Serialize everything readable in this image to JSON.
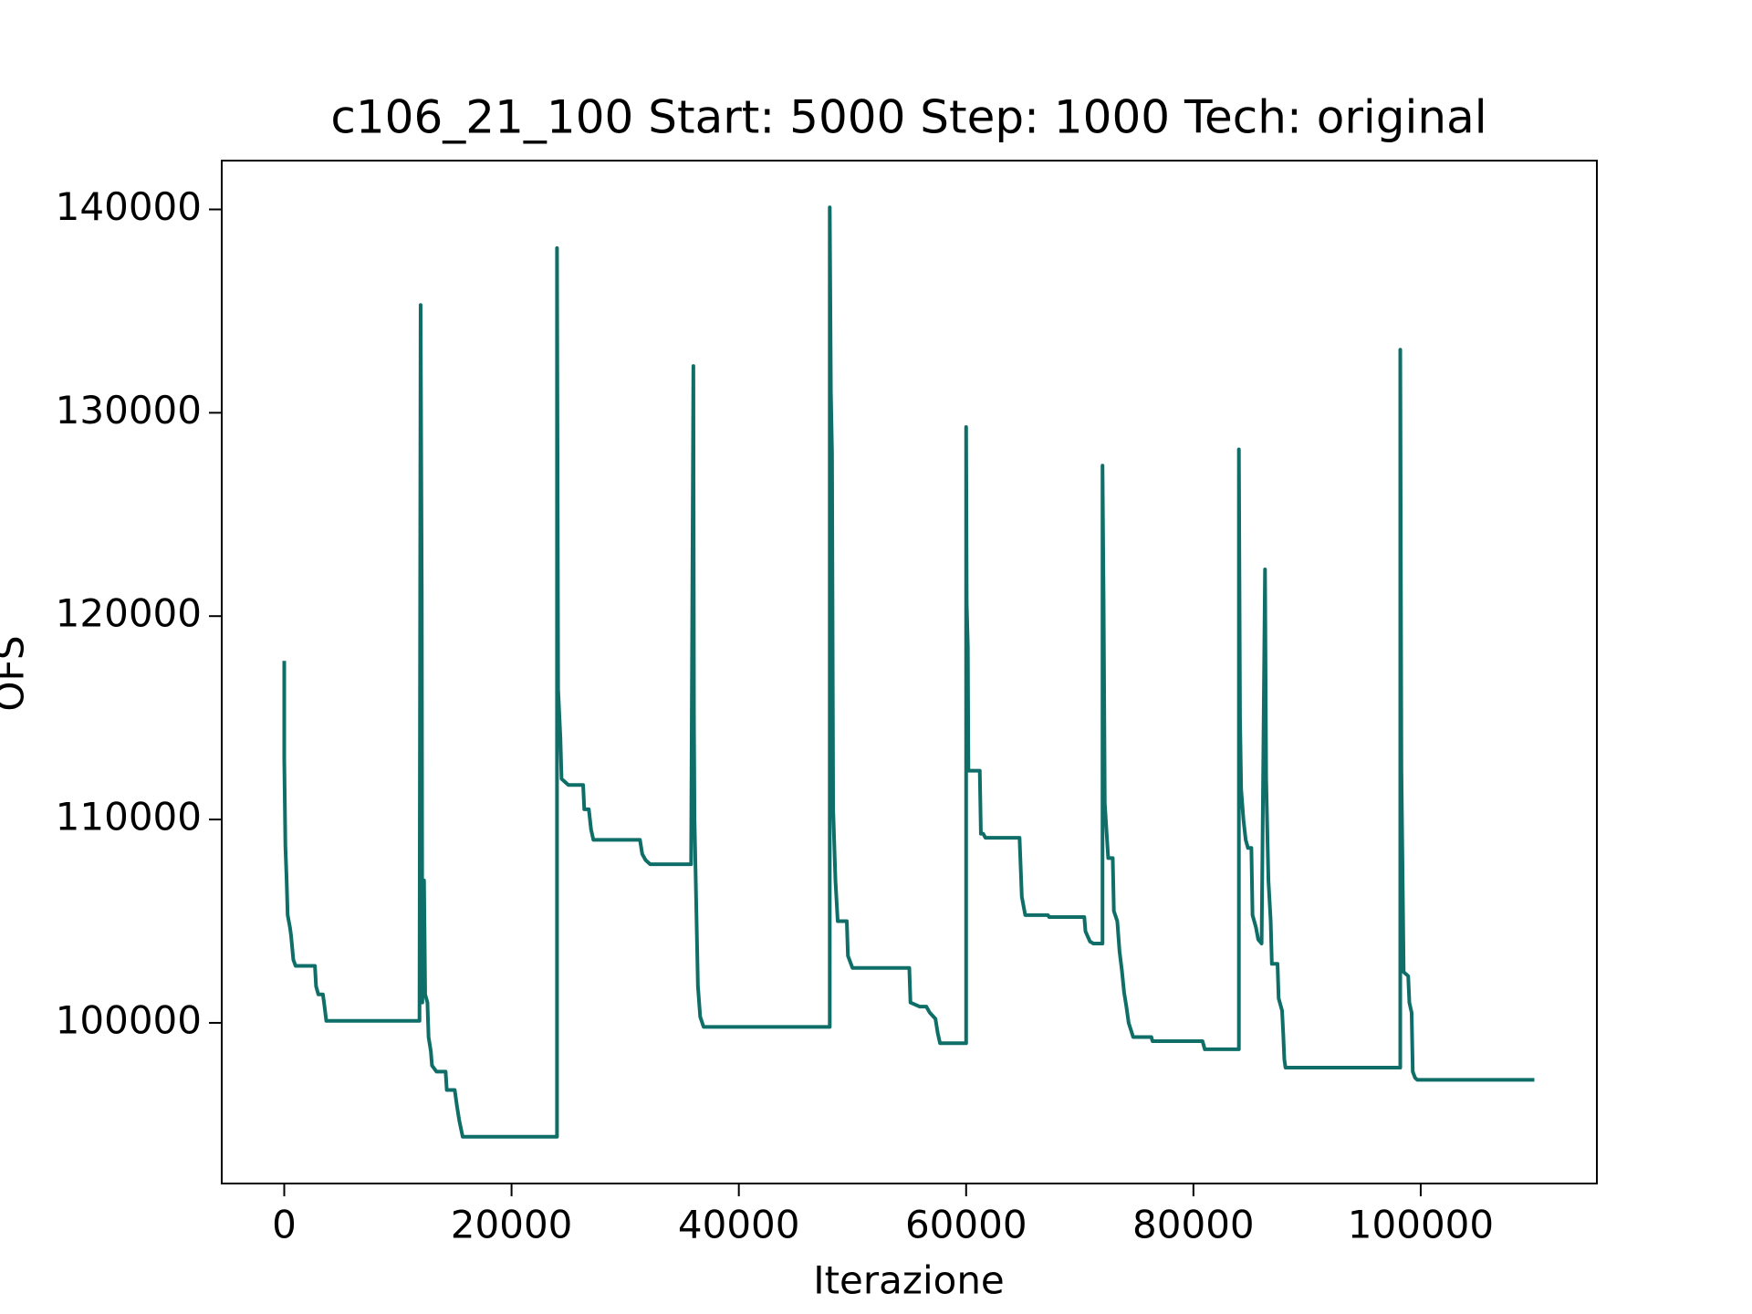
{
  "chart_data": {
    "type": "line",
    "title": "c106_21_100 Start: 5000 Step: 1000 Tech: original",
    "xlabel": "Iterazione",
    "ylabel": "OFS",
    "color": "#0f6e68",
    "xlim": [
      -5500,
      115500
    ],
    "ylim": [
      92100,
      142400
    ],
    "xticks": [
      0,
      20000,
      40000,
      60000,
      80000,
      100000
    ],
    "yticks": [
      100000,
      110000,
      120000,
      130000,
      140000
    ],
    "x": [
      0,
      0,
      100,
      200,
      300,
      500,
      600,
      800,
      1000,
      2700,
      2800,
      3000,
      3400,
      3500,
      3700,
      11900,
      12000,
      12100,
      12150,
      12300,
      12400,
      12600,
      12700,
      12900,
      13000,
      13400,
      14200,
      14300,
      15000,
      15200,
      15400,
      15700,
      24000,
      24000,
      24100,
      24300,
      24400,
      24800,
      25000,
      26300,
      26400,
      26800,
      27000,
      27200,
      31300,
      31500,
      31800,
      32200,
      35800,
      36000,
      36050,
      36100,
      36300,
      36400,
      36600,
      36900,
      48000,
      48000,
      48100,
      48200,
      48300,
      48500,
      48700,
      49500,
      49600,
      50000,
      55000,
      55100,
      55900,
      56500,
      56800,
      57300,
      57500,
      57700,
      60000,
      60000,
      60050,
      60150,
      60200,
      61200,
      61300,
      61500,
      61700,
      64700,
      64900,
      65000,
      65200,
      67200,
      67300,
      70400,
      70500,
      70900,
      71200,
      72000,
      72000,
      72100,
      72200,
      72500,
      72900,
      73000,
      73300,
      73500,
      73700,
      73900,
      74100,
      74300,
      74700,
      76300,
      76400,
      80800,
      81000,
      84000,
      84000,
      84100,
      84200,
      84400,
      84600,
      84800,
      85100,
      85200,
      85500,
      85700,
      86000,
      86300,
      86400,
      86600,
      86800,
      86900,
      87400,
      87500,
      87800,
      87900,
      88000,
      88100,
      98200,
      98200,
      98300,
      98400,
      98500,
      98900,
      99000,
      99200,
      99300,
      99500,
      99700,
      110000
    ],
    "values": [
      117800,
      113000,
      108700,
      107200,
      105300,
      104700,
      104300,
      103100,
      102800,
      102800,
      101800,
      101400,
      101400,
      101000,
      100100,
      100100,
      135300,
      121000,
      101000,
      107000,
      101400,
      101000,
      99300,
      98600,
      97900,
      97600,
      97600,
      96700,
      96700,
      95900,
      95200,
      94400,
      94400,
      138100,
      116400,
      114000,
      112000,
      111800,
      111700,
      111700,
      110500,
      110500,
      109500,
      109000,
      109000,
      108300,
      108000,
      107800,
      107800,
      132300,
      115000,
      110000,
      104500,
      101800,
      100300,
      99800,
      99800,
      140100,
      131000,
      128000,
      110500,
      107000,
      105000,
      105000,
      103300,
      102700,
      102700,
      101000,
      100800,
      100800,
      100500,
      100200,
      99500,
      99000,
      99000,
      129300,
      120600,
      118500,
      112400,
      112400,
      109300,
      109300,
      109100,
      109100,
      106200,
      105900,
      105300,
      105300,
      105200,
      105200,
      104500,
      104000,
      103900,
      103900,
      127400,
      120500,
      110800,
      108100,
      108100,
      105500,
      105000,
      103500,
      102600,
      101500,
      100800,
      100000,
      99300,
      99300,
      99100,
      99100,
      98700,
      98700,
      128200,
      115000,
      111500,
      110000,
      109000,
      108600,
      108600,
      105300,
      104700,
      104100,
      103900,
      122300,
      112000,
      107000,
      105000,
      102900,
      102900,
      101200,
      100600,
      99500,
      98200,
      97800,
      97800,
      133100,
      112500,
      107500,
      102500,
      102300,
      101000,
      100500,
      97600,
      97300,
      97200,
      97200
    ]
  }
}
